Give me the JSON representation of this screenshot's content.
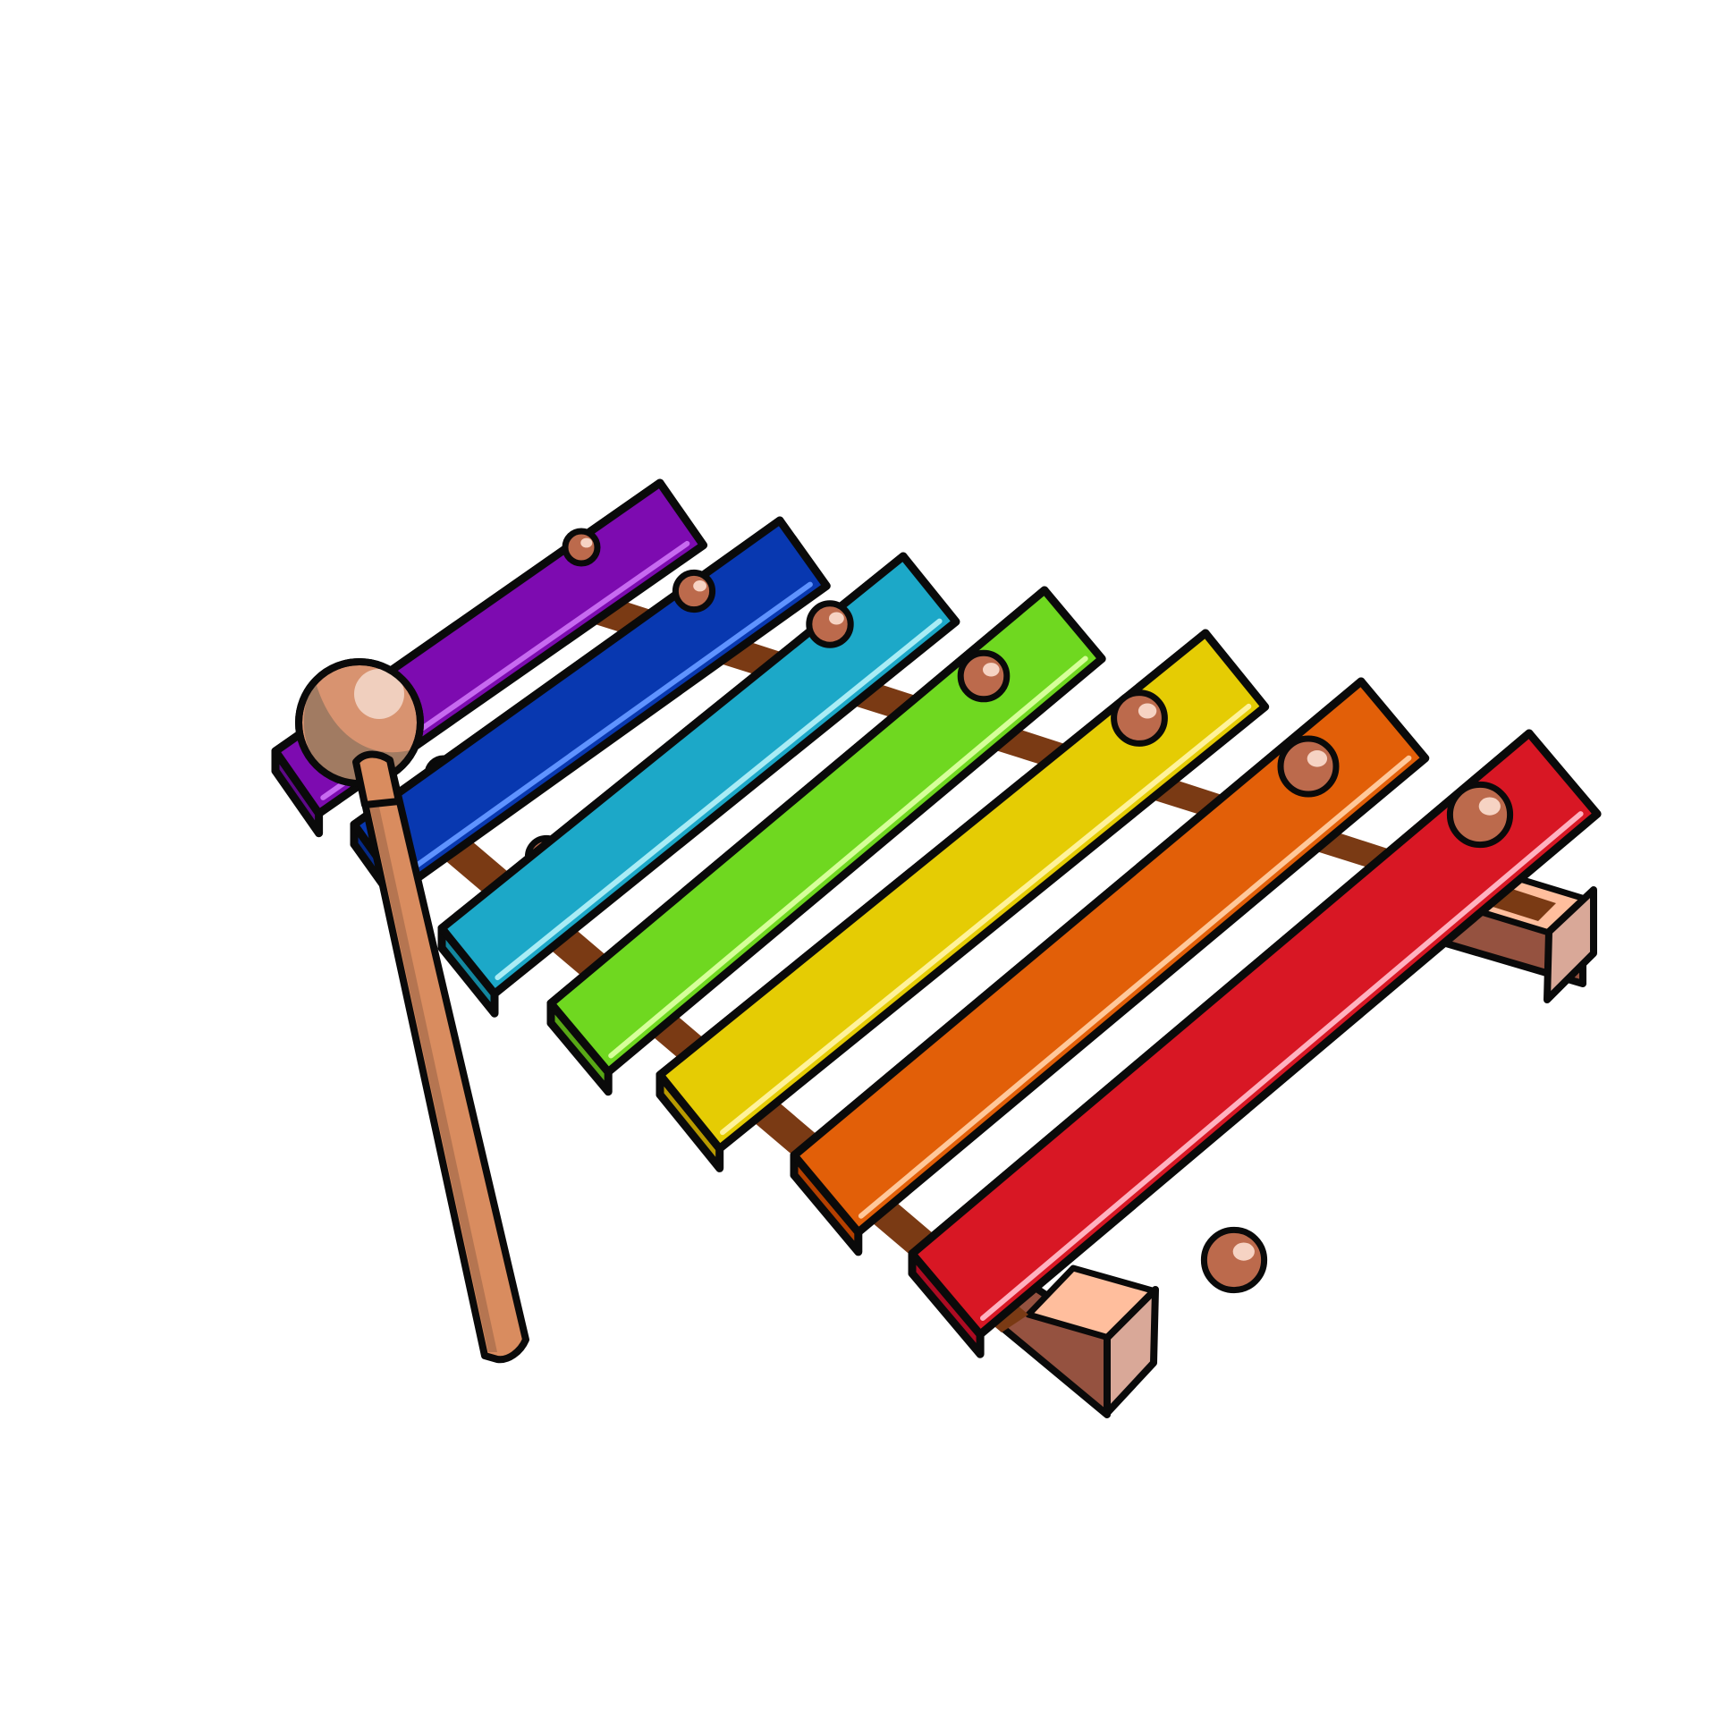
{
  "illustration": {
    "subject": "xylophone",
    "background": "#ffffff",
    "outline": "#0a0a0a",
    "bars": [
      {
        "name": "purple",
        "top": "#7d0bb0",
        "side": "#5e0888",
        "shine": "#c76af0"
      },
      {
        "name": "blue",
        "top": "#0838b0",
        "side": "#062a88",
        "shine": "#5f93ff"
      },
      {
        "name": "cyan",
        "top": "#1ca8c8",
        "side": "#13879f",
        "shine": "#a9ecf5"
      },
      {
        "name": "green",
        "top": "#6fd820",
        "side": "#58a816",
        "shine": "#d6ff9a"
      },
      {
        "name": "yellow",
        "top": "#e5cc04",
        "side": "#b89a00",
        "shine": "#fff29a"
      },
      {
        "name": "orange",
        "top": "#e25f08",
        "side": "#b54000",
        "shine": "#ffc89a"
      },
      {
        "name": "red",
        "top": "#d81724",
        "side": "#ad0b22",
        "shine": "#ffb2c0"
      }
    ],
    "rail": {
      "top": "#ffbe9d",
      "side": "#955240",
      "end": "#d9a898",
      "inner": "#7a3a14"
    },
    "peg": {
      "fill": "#bc6a4c",
      "highlight": "#f6d3c3"
    },
    "mallet": {
      "head": "#d89370",
      "head_shade": "#a17b62",
      "head_highlight": "#f0cfbe",
      "stick": "#d98c5f",
      "stick_shade": "#a86e4c"
    }
  }
}
